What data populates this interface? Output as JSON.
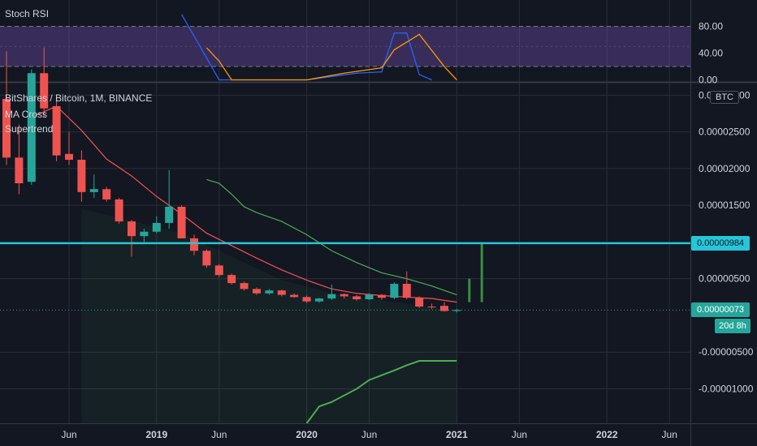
{
  "rsi": {
    "title": "Stoch RSI",
    "ticks": [
      "80.00",
      "40.00",
      "0.00"
    ],
    "tick_values": [
      80,
      40,
      0
    ],
    "band_upper": 80,
    "band_lower": 20,
    "range": [
      -3,
      100
    ]
  },
  "legend": {
    "symbol": "BitShares / Bitcoin, 1M, BINANCE",
    "ma": "MA Cross",
    "supertrend": "Supertrend"
  },
  "currency_badge": "BTC",
  "price_axis": {
    "ticks": [
      "0.00003000",
      "0.00002500",
      "0.00002000",
      "0.00001500",
      "0.00000500",
      "-0.00000500",
      "-0.00001000"
    ],
    "tick_values": [
      3e-05,
      2.5e-05,
      2e-05,
      1.5e-05,
      5e-06,
      -5e-06,
      -1e-05
    ],
    "range": [
      -1.47e-05,
      3.17e-05
    ]
  },
  "hline": {
    "value": 9.84e-06,
    "label": "0.00000984",
    "color": "#26c6da"
  },
  "last_price": {
    "value": 7.3e-07,
    "label": "0.00000073",
    "countdown": "20d 8h",
    "color": "#26a69a"
  },
  "time_axis": {
    "ticks": [
      {
        "label": "Jun",
        "m": 5,
        "bold": false
      },
      {
        "label": "2019",
        "m": 12,
        "bold": true
      },
      {
        "label": "Jun",
        "m": 17,
        "bold": false
      },
      {
        "label": "2020",
        "m": 24,
        "bold": true
      },
      {
        "label": "Jun",
        "m": 29,
        "bold": false
      },
      {
        "label": "2021",
        "m": 36,
        "bold": true
      },
      {
        "label": "Jun",
        "m": 41,
        "bold": false
      },
      {
        "label": "2022",
        "m": 48,
        "bold": true
      },
      {
        "label": "Jun",
        "m": 53,
        "bold": false
      }
    ]
  },
  "colors": {
    "up": "#26a69a",
    "down": "#ef5350",
    "bg": "#131722",
    "grid": "#2a2e39",
    "ma_fast": "#f05350",
    "ma_slow": "#4caf50",
    "supertrend": "#4caf50",
    "stoch_k": "#2962ff",
    "stoch_d": "#ff9800",
    "rsi_band": "#7e57c2"
  },
  "chart_data": [
    {
      "type": "candlestick",
      "title": "BitShares / Bitcoin, 1M, BINANCE",
      "x_unit": "month index (0 = Jan 2018)",
      "candles": [
        {
          "m": 0,
          "o": 2.95e-05,
          "h": 3.6e-05,
          "l": 2.05e-05,
          "c": 2.15e-05
        },
        {
          "m": 1,
          "o": 2.15e-05,
          "h": 2.6e-05,
          "l": 1.65e-05,
          "c": 1.8e-05
        },
        {
          "m": 2,
          "o": 1.82e-05,
          "h": 3.35e-05,
          "l": 1.78e-05,
          "c": 3.3e-05
        },
        {
          "m": 3,
          "o": 3.3e-05,
          "h": 3.65e-05,
          "l": 2.7e-05,
          "c": 2.82e-05
        },
        {
          "m": 4,
          "o": 2.85e-05,
          "h": 3e-05,
          "l": 2.1e-05,
          "c": 2.18e-05
        },
        {
          "m": 5,
          "o": 2.2e-05,
          "h": 2.5e-05,
          "l": 2.05e-05,
          "c": 2.12e-05
        },
        {
          "m": 6,
          "o": 2.12e-05,
          "h": 2.25e-05,
          "l": 1.55e-05,
          "c": 1.68e-05
        },
        {
          "m": 7,
          "o": 1.68e-05,
          "h": 1.92e-05,
          "l": 1.6e-05,
          "c": 1.72e-05
        },
        {
          "m": 8,
          "o": 1.72e-05,
          "h": 1.75e-05,
          "l": 1.55e-05,
          "c": 1.58e-05
        },
        {
          "m": 9,
          "o": 1.58e-05,
          "h": 1.6e-05,
          "l": 1.25e-05,
          "c": 1.28e-05
        },
        {
          "m": 10,
          "o": 1.28e-05,
          "h": 1.3e-05,
          "l": 8e-06,
          "c": 1.08e-05
        },
        {
          "m": 11,
          "o": 1.08e-05,
          "h": 1.18e-05,
          "l": 1e-05,
          "c": 1.14e-05
        },
        {
          "m": 12,
          "o": 1.14e-05,
          "h": 1.35e-05,
          "l": 1.12e-05,
          "c": 1.26e-05
        },
        {
          "m": 13,
          "o": 1.26e-05,
          "h": 1.98e-05,
          "l": 1.18e-05,
          "c": 1.48e-05
        },
        {
          "m": 14,
          "o": 1.48e-05,
          "h": 1.5e-05,
          "l": 1.05e-05,
          "c": 1.05e-05
        },
        {
          "m": 15,
          "o": 1.05e-05,
          "h": 1.1e-05,
          "l": 8.2e-06,
          "c": 8.8e-06
        },
        {
          "m": 16,
          "o": 8.8e-06,
          "h": 9e-06,
          "l": 6.5e-06,
          "c": 6.8e-06
        },
        {
          "m": 17,
          "o": 6.8e-06,
          "h": 7e-06,
          "l": 5.2e-06,
          "c": 5.5e-06
        },
        {
          "m": 18,
          "o": 5.5e-06,
          "h": 5.7e-06,
          "l": 4.2e-06,
          "c": 4.4e-06
        },
        {
          "m": 19,
          "o": 4.4e-06,
          "h": 4.6e-06,
          "l": 3.4e-06,
          "c": 3.6e-06
        },
        {
          "m": 20,
          "o": 3.6e-06,
          "h": 3.8e-06,
          "l": 2.8e-06,
          "c": 3e-06
        },
        {
          "m": 21,
          "o": 3e-06,
          "h": 3.6e-06,
          "l": 2.8e-06,
          "c": 3.4e-06
        },
        {
          "m": 22,
          "o": 3.4e-06,
          "h": 3.5e-06,
          "l": 2.6e-06,
          "c": 2.8e-06
        },
        {
          "m": 23,
          "o": 2.8e-06,
          "h": 3e-06,
          "l": 2.4e-06,
          "c": 2.5e-06
        },
        {
          "m": 24,
          "o": 2.5e-06,
          "h": 2.7e-06,
          "l": 1.7e-06,
          "c": 1.9e-06
        },
        {
          "m": 25,
          "o": 1.9e-06,
          "h": 2.4e-06,
          "l": 1.7e-06,
          "c": 2.3e-06
        },
        {
          "m": 26,
          "o": 2.3e-06,
          "h": 4.2e-06,
          "l": 2.1e-06,
          "c": 2.9e-06
        },
        {
          "m": 27,
          "o": 2.9e-06,
          "h": 3e-06,
          "l": 2.3e-06,
          "c": 2.6e-06
        },
        {
          "m": 28,
          "o": 2.6e-06,
          "h": 2.8e-06,
          "l": 2e-06,
          "c": 2.2e-06
        },
        {
          "m": 29,
          "o": 2.2e-06,
          "h": 3e-06,
          "l": 2.1e-06,
          "c": 2.8e-06
        },
        {
          "m": 30,
          "o": 2.8e-06,
          "h": 2.9e-06,
          "l": 2.1e-06,
          "c": 2.4e-06
        },
        {
          "m": 31,
          "o": 2.4e-06,
          "h": 4.5e-06,
          "l": 2.2e-06,
          "c": 4.3e-06
        },
        {
          "m": 32,
          "o": 4.3e-06,
          "h": 6e-06,
          "l": 2.2e-06,
          "c": 2.4e-06
        },
        {
          "m": 33,
          "o": 2.4e-06,
          "h": 2.6e-06,
          "l": 1e-06,
          "c": 1.2e-06
        },
        {
          "m": 34,
          "o": 1.2e-06,
          "h": 1.6e-06,
          "l": 9e-07,
          "c": 1.1e-06
        },
        {
          "m": 35,
          "o": 1.3e-06,
          "h": 1.8e-06,
          "l": 5e-07,
          "c": 6e-07
        },
        {
          "m": 36,
          "o": 6e-07,
          "h": 9e-07,
          "l": 4e-07,
          "c": 7.3e-07
        }
      ],
      "ma_fast": [
        {
          "m": 2,
          "v": 2.7e-05
        },
        {
          "m": 4,
          "v": 2.85e-05
        },
        {
          "m": 6,
          "v": 2.52e-05
        },
        {
          "m": 8,
          "v": 2.13e-05
        },
        {
          "m": 10,
          "v": 1.9e-05
        },
        {
          "m": 12,
          "v": 1.62e-05
        },
        {
          "m": 14,
          "v": 1.38e-05
        },
        {
          "m": 16,
          "v": 1.12e-05
        },
        {
          "m": 18,
          "v": 9.5e-06
        },
        {
          "m": 20,
          "v": 7.8e-06
        },
        {
          "m": 22,
          "v": 6.2e-06
        },
        {
          "m": 24,
          "v": 4.8e-06
        },
        {
          "m": 26,
          "v": 3.6e-06
        },
        {
          "m": 28,
          "v": 3e-06
        },
        {
          "m": 30,
          "v": 2.7e-06
        },
        {
          "m": 32,
          "v": 2.5e-06
        },
        {
          "m": 34,
          "v": 2.3e-06
        },
        {
          "m": 36,
          "v": 1.8e-06
        }
      ],
      "ma_slow": [
        {
          "m": 16,
          "v": 1.85e-05
        },
        {
          "m": 17,
          "v": 1.8e-05
        },
        {
          "m": 18,
          "v": 1.65e-05
        },
        {
          "m": 19,
          "v": 1.48e-05
        },
        {
          "m": 20,
          "v": 1.4e-05
        },
        {
          "m": 22,
          "v": 1.28e-05
        },
        {
          "m": 24,
          "v": 1.1e-05
        },
        {
          "m": 26,
          "v": 8.8e-06
        },
        {
          "m": 28,
          "v": 7.2e-06
        },
        {
          "m": 30,
          "v": 5.8e-06
        },
        {
          "m": 32,
          "v": 5e-06
        },
        {
          "m": 34,
          "v": 4e-06
        },
        {
          "m": 36,
          "v": 2.8e-06
        }
      ],
      "supertrend": [
        {
          "m": 24,
          "v": -1.47e-05
        },
        {
          "m": 25,
          "v": -1.24e-05
        },
        {
          "m": 26,
          "v": -1.18e-05
        },
        {
          "m": 28,
          "v": -1e-05
        },
        {
          "m": 29,
          "v": -8.8e-06
        },
        {
          "m": 31,
          "v": -7.5e-06
        },
        {
          "m": 32,
          "v": -6.8e-06
        },
        {
          "m": 33,
          "v": -6.2e-06
        },
        {
          "m": 36,
          "v": -6.2e-06
        }
      ],
      "supertrend_fill_from": 6,
      "projection": [
        {
          "m": 37,
          "v0": 1.8e-06,
          "v1": 5e-06
        },
        {
          "m": 38,
          "v0": 1.8e-06,
          "v1": 9.84e-06
        }
      ]
    },
    {
      "type": "line",
      "title": "Stoch RSI",
      "x_unit": "month index (0 = Jan 2018)",
      "ylim": [
        0,
        100
      ],
      "series": [
        {
          "name": "%K",
          "color": "#2962ff",
          "points": [
            {
              "m": 14,
              "v": 98
            },
            {
              "m": 17,
              "v": 0
            },
            {
              "m": 20,
              "v": 0
            },
            {
              "m": 24,
              "v": 0
            },
            {
              "m": 28,
              "v": 10
            },
            {
              "m": 30,
              "v": 12
            },
            {
              "m": 31,
              "v": 70
            },
            {
              "m": 32,
              "v": 70
            },
            {
              "m": 33,
              "v": 8
            },
            {
              "m": 34,
              "v": 0
            }
          ]
        },
        {
          "name": "%D",
          "color": "#ff9800",
          "points": [
            {
              "m": 16,
              "v": 48
            },
            {
              "m": 17,
              "v": 28
            },
            {
              "m": 18,
              "v": 0
            },
            {
              "m": 24,
              "v": 0
            },
            {
              "m": 27,
              "v": 10
            },
            {
              "m": 30,
              "v": 18
            },
            {
              "m": 31,
              "v": 45
            },
            {
              "m": 33,
              "v": 68
            },
            {
              "m": 35,
              "v": 20
            },
            {
              "m": 36,
              "v": 0
            }
          ]
        }
      ]
    }
  ]
}
